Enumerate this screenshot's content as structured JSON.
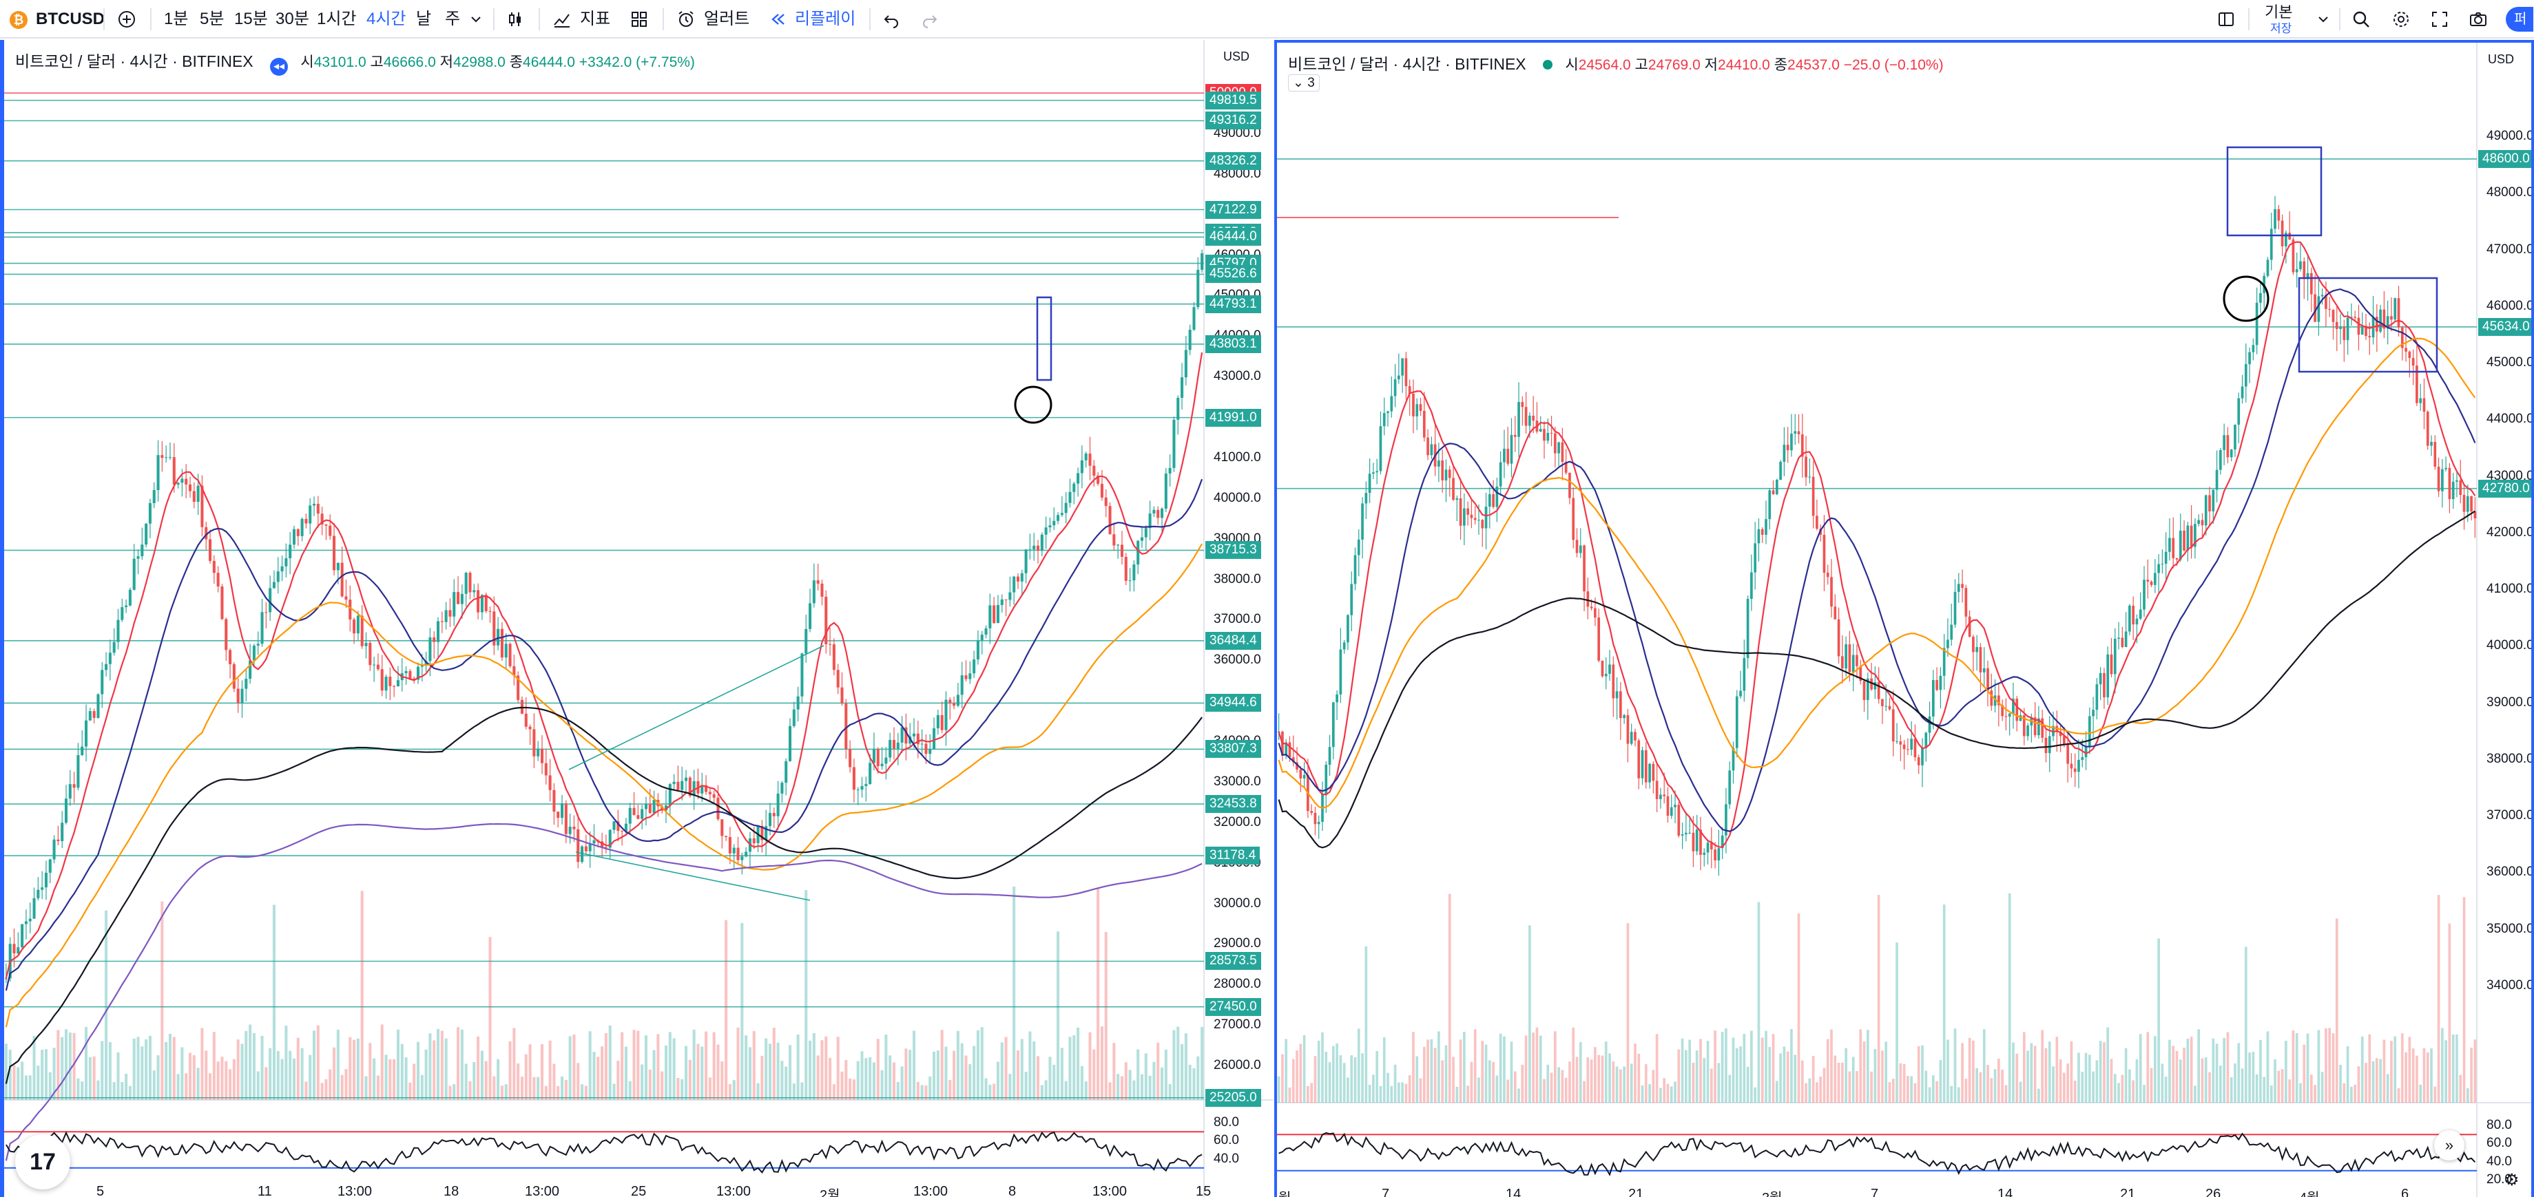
{
  "toolbar": {
    "symbol": "BTCUSD",
    "intervals": [
      "1분",
      "5분",
      "15분",
      "30분",
      "1시간",
      "4시간",
      "날",
      "주"
    ],
    "active_interval": "4시간",
    "indicators_label": "지표",
    "alerts_label": "얼러트",
    "replay_label": "리플레이",
    "layout_label": "기본",
    "layout_sub": "저장",
    "publish_label": "퍼"
  },
  "left": {
    "title": "비트코인 / 달러 · 4시간 · BITFINEX",
    "ohlc": {
      "o_label": "시",
      "o": "43101.0",
      "h_label": "고",
      "h": "46666.0",
      "l_label": "저",
      "l": "42988.0",
      "c_label": "종",
      "c": "46444.0",
      "chg": "+3342.0 (+7.75%)"
    },
    "currency": "USD",
    "y_ticks": [
      "49000.0",
      "48000.0",
      "47000.0",
      "46000.0",
      "45000.0",
      "44000.0",
      "43000.0",
      "42000.0",
      "41000.0",
      "40000.0",
      "39000.0",
      "38000.0",
      "37000.0",
      "36000.0",
      "35000.0",
      "34000.0",
      "33000.0",
      "32000.0",
      "31000.0",
      "30000.0",
      "29000.0",
      "28000.0",
      "27000.0",
      "26000.0"
    ],
    "level_badges": [
      {
        "label": "50000.0",
        "color": "#f23645"
      },
      {
        "label": "49819.5",
        "color": "#26a69a"
      },
      {
        "label": "49316.2",
        "color": "#26a69a"
      },
      {
        "label": "48326.2",
        "color": "#26a69a"
      },
      {
        "label": "47122.9",
        "color": "#26a69a"
      },
      {
        "label": "46554.8",
        "color": "#26a69a"
      },
      {
        "label": "46444.0",
        "color": "#26a69a"
      },
      {
        "label": "45797.0",
        "color": "#26a69a"
      },
      {
        "label": "45526.6",
        "color": "#26a69a"
      },
      {
        "label": "44793.1",
        "color": "#26a69a"
      },
      {
        "label": "43803.1",
        "color": "#26a69a"
      },
      {
        "label": "41991.0",
        "color": "#26a69a"
      },
      {
        "label": "38715.3",
        "color": "#26a69a"
      },
      {
        "label": "36484.4",
        "color": "#26a69a"
      },
      {
        "label": "34944.6",
        "color": "#26a69a"
      },
      {
        "label": "33807.3",
        "color": "#26a69a"
      },
      {
        "label": "32453.8",
        "color": "#26a69a"
      },
      {
        "label": "31178.4",
        "color": "#26a69a"
      },
      {
        "label": "28573.5",
        "color": "#26a69a"
      },
      {
        "label": "27450.0",
        "color": "#26a69a"
      },
      {
        "label": "25205.0",
        "color": "#26a69a"
      }
    ],
    "rsi_ticks": [
      "80.0",
      "60.0",
      "40.0"
    ],
    "x_ticks": [
      "5",
      "11",
      "13:00",
      "18",
      "13:00",
      "25",
      "13:00",
      "2월",
      "13:00",
      "8",
      "13:00",
      "15"
    ]
  },
  "right": {
    "title": "비트코인 / 달러 · 4시간 · BITFINEX",
    "ohlc": {
      "o_label": "시",
      "o": "24564.0",
      "h_label": "고",
      "h": "24769.0",
      "l_label": "저",
      "l": "24410.0",
      "c_label": "종",
      "c": "24537.0",
      "chg": "−25.0 (−0.10%)"
    },
    "collapse_count": "3",
    "currency": "USD",
    "y_ticks": [
      "49000.0",
      "48000.0",
      "47000.0",
      "46000.0",
      "45000.0",
      "44000.0",
      "43000.0",
      "42000.0",
      "41000.0",
      "40000.0",
      "39000.0",
      "38000.0",
      "37000.0",
      "36000.0",
      "35000.0",
      "34000.0"
    ],
    "level_badges": [
      {
        "label": "48600.0",
        "color": "#26a69a"
      },
      {
        "label": "45634.0",
        "color": "#26a69a"
      },
      {
        "label": "42780.0",
        "color": "#26a69a"
      }
    ],
    "rsi_ticks": [
      "80.0",
      "60.0",
      "40.0",
      "20.0"
    ],
    "x_ticks": [
      "월",
      "7",
      "14",
      "21",
      "3월",
      "7",
      "14",
      "21",
      "26",
      "4월",
      "6"
    ]
  }
}
